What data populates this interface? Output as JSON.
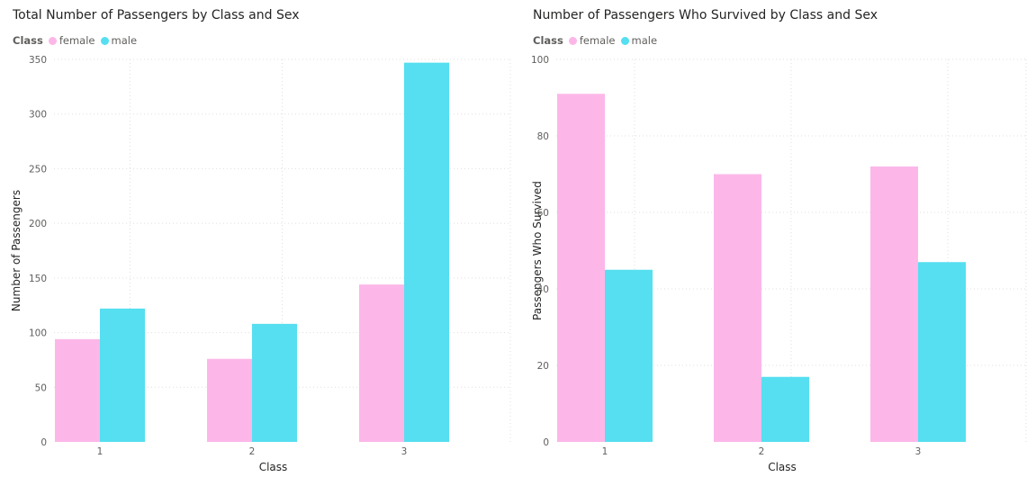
{
  "charts": [
    {
      "title": "Total Number of Passengers by Class and Sex",
      "legend": {
        "title": "Class",
        "items": [
          "female",
          "male"
        ]
      }
    },
    {
      "title": "Number of Passengers Who Survived by Class and Sex",
      "legend": {
        "title": "Class",
        "items": [
          "female",
          "male"
        ]
      }
    }
  ],
  "colors": {
    "female": "#fcb7e8",
    "male": "#55dff0",
    "grid": "#e1dfdd"
  },
  "chart_data": [
    {
      "type": "bar",
      "title": "Total Number of Passengers by Class and Sex",
      "xlabel": "Class",
      "ylabel": "Number of Passengers",
      "categories": [
        "1",
        "2",
        "3"
      ],
      "series": [
        {
          "name": "female",
          "values": [
            94,
            76,
            144
          ]
        },
        {
          "name": "male",
          "values": [
            122,
            108,
            347
          ]
        }
      ],
      "ylim": [
        0,
        350
      ],
      "yticks": [
        0,
        50,
        100,
        150,
        200,
        250,
        300,
        350
      ],
      "grid": true,
      "legend_position": "top-left"
    },
    {
      "type": "bar",
      "title": "Number of Passengers Who Survived by Class and Sex",
      "xlabel": "Class",
      "ylabel": "Passengers Who Survived",
      "categories": [
        "1",
        "2",
        "3"
      ],
      "series": [
        {
          "name": "female",
          "values": [
            91,
            70,
            72
          ]
        },
        {
          "name": "male",
          "values": [
            45,
            17,
            47
          ]
        }
      ],
      "ylim": [
        0,
        100
      ],
      "yticks": [
        0,
        20,
        40,
        60,
        80,
        100
      ],
      "grid": true,
      "legend_position": "top-left"
    }
  ]
}
